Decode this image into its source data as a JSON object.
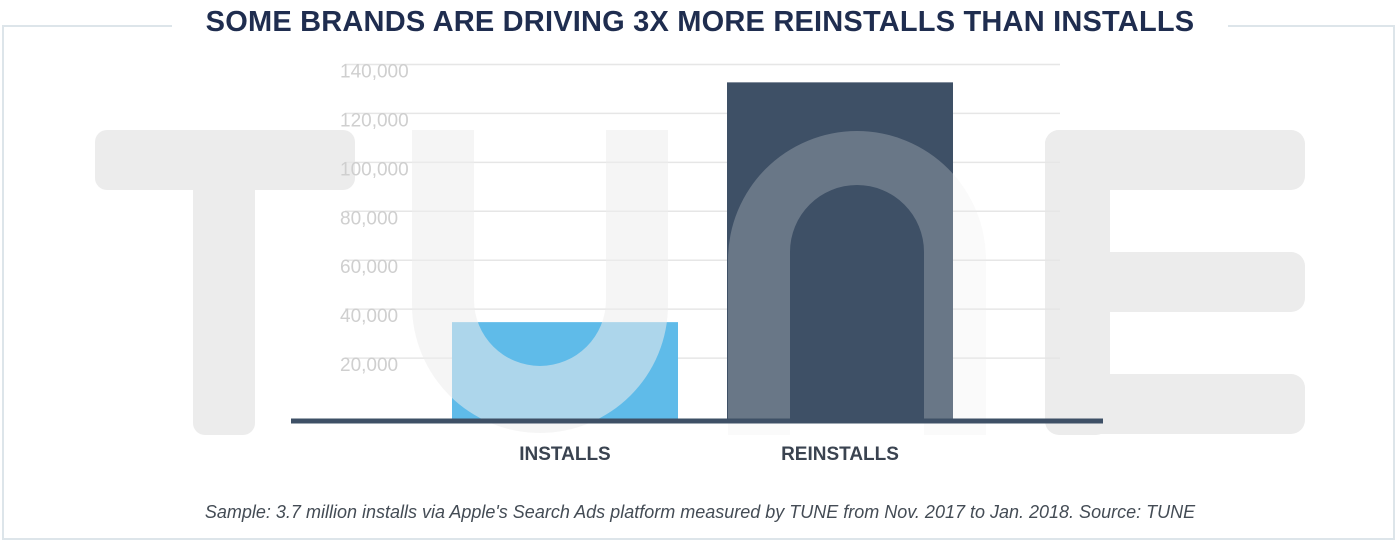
{
  "title": "SOME BRANDS ARE DRIVING 3X MORE REINSTALLS THAN INSTALLS",
  "watermark": "TUNE",
  "caption": "Sample: 3.7 million installs via Apple's Search Ads platform measured by TUNE from Nov. 2017 to Jan. 2018. Source: TUNE",
  "colors": {
    "installs": "#5fbbe9",
    "reinstalls": "#3e5066",
    "grid": "#e6e6e6",
    "tick_text": "#cfcfcf",
    "baseline": "#3e5066",
    "watermark": "#ececec",
    "title": "#1f2d4f",
    "category_text": "#3a4350"
  },
  "chart_data": {
    "type": "bar",
    "title": "SOME BRANDS ARE DRIVING 3X MORE REINSTALLS THAN INSTALLS",
    "categories": [
      "INSTALLS",
      "REINSTALLS"
    ],
    "values": [
      40000,
      138000
    ],
    "ylim": [
      0,
      150000
    ],
    "yticks": [
      20000,
      40000,
      60000,
      80000,
      100000,
      120000,
      140000
    ],
    "ytick_labels": [
      "20,000",
      "40,000",
      "60,000",
      "80,000",
      "100,000",
      "120,000",
      "140,000"
    ],
    "xlabel": "",
    "ylabel": "",
    "grid": true,
    "legend": "none"
  }
}
